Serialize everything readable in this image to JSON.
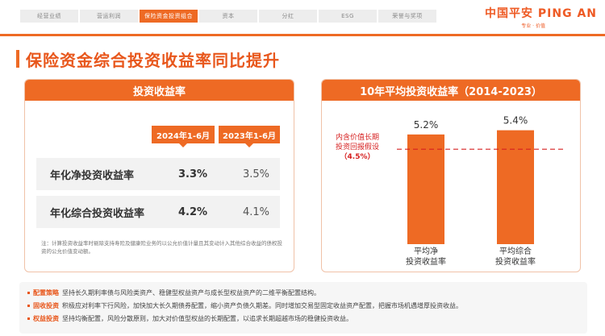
{
  "nav": {
    "tabs": [
      "经营业绩",
      "营运利润",
      "保险资金投资组合",
      "资本",
      "分红",
      "ESG",
      "荣誉与奖项"
    ],
    "active_index": 2
  },
  "logo": {
    "main": "中国平安 PING AN",
    "sub": "专业 · 价值"
  },
  "title": "保险资金综合投资收益率同比提升",
  "left": {
    "header": "投资收益率",
    "col1": "2024年1-6月",
    "col2": "2023年1-6月",
    "rows": [
      {
        "label": "年化净投资收益率",
        "v1": "3.3%",
        "v2": "3.5%"
      },
      {
        "label": "年化综合投资收益率",
        "v1": "4.2%",
        "v2": "4.1%"
      }
    ],
    "note": "注：计算投资收益率时剔除支持寿险及健康险业务的以公允价值计量且其变动计入其他综合收益的债权投资的公允价值变动额。"
  },
  "chart_data": {
    "type": "bar",
    "title": "10年平均投资收益率（2014-2023）",
    "categories": [
      "平均净投资收益率",
      "平均综合投资收益率"
    ],
    "category_lines": [
      [
        "平均净",
        "投资收益率"
      ],
      [
        "平均综合",
        "投资收益率"
      ]
    ],
    "values": [
      5.2,
      5.4
    ],
    "value_labels": [
      "5.2%",
      "5.4%"
    ],
    "ylim": [
      0,
      6.8
    ],
    "reference_line": {
      "value": 4.5,
      "label_lines": [
        "内含价值长期",
        "投资回报假设",
        "（4.5%）"
      ]
    },
    "color": "#ee6a24"
  },
  "bullets": [
    {
      "key": "配置策略",
      "text": "坚持长久期利率债与风险类资产、稳健型权益资产与成长型权益资产的二维平衡配置结构。"
    },
    {
      "key": "固收投资",
      "text": "积极应对利率下行风险，加快加大长久期债券配置，缩小资产负债久期差。同时增加交易型固定收益资产配置，把握市场机遇增厚投资收益。"
    },
    {
      "key": "权益投资",
      "text": "坚持均衡配置，风险分散原则，加大对价值型权益的长期配置，以追求长期超越市场的稳健投资收益。"
    }
  ]
}
